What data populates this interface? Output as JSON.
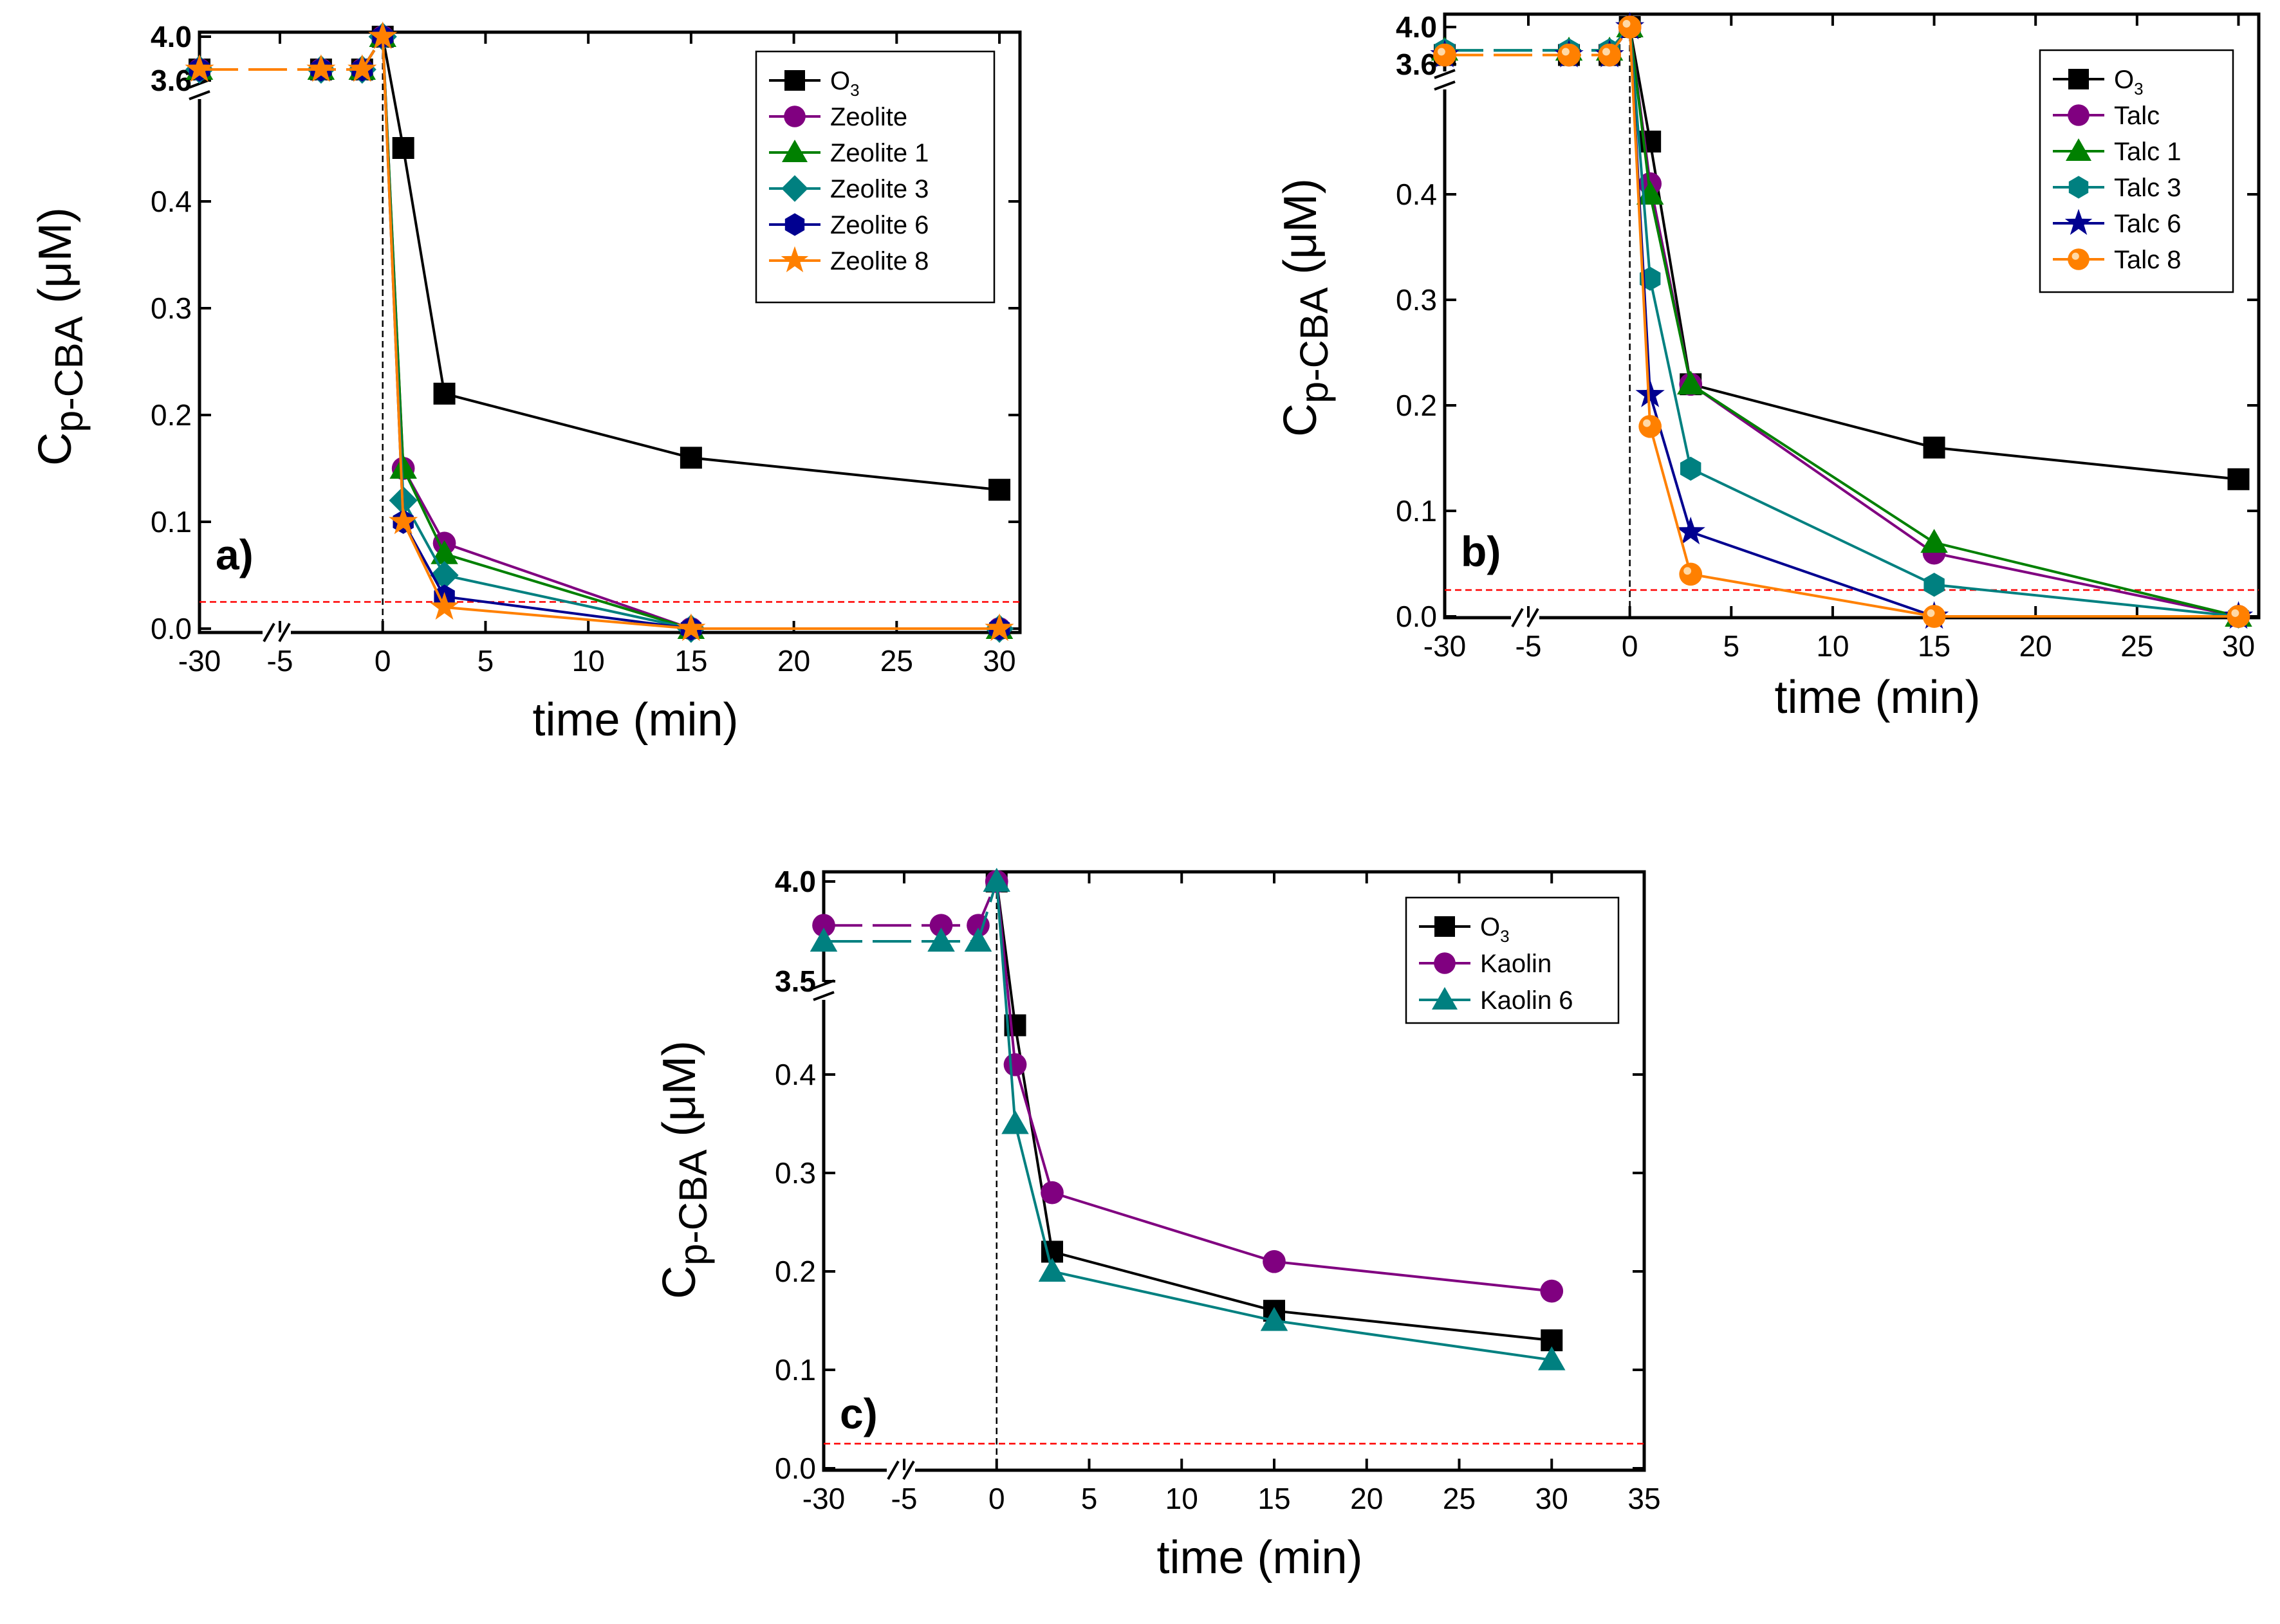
{
  "chart_data": [
    {
      "type": "line",
      "panel_label": "a)",
      "title": "",
      "xlabel": "time (min)",
      "ylabel_main": "C",
      "ylabel_sub": "p-CBA",
      "ylabel_unit": " (μM)",
      "x_broken": [
        -30,
        -5
      ],
      "x_ticks": [
        -30,
        -5,
        0,
        5,
        10,
        15,
        20,
        25,
        30
      ],
      "x_tick_labels": [
        "-30",
        "-5",
        "0",
        "5",
        "10",
        "15",
        "20",
        "25",
        "30"
      ],
      "xlim": [
        -5,
        31
      ],
      "ylim_lower": [
        0,
        0.45
      ],
      "y_ticks_lower": [
        0.0,
        0.1,
        0.2,
        0.3,
        0.4
      ],
      "y_tick_labels_lower": [
        "0.0",
        "0.1",
        "0.2",
        "0.3",
        "0.4"
      ],
      "ylim_upper": [
        3.6,
        4.0
      ],
      "y_ticks_upper": [
        3.6,
        4.0
      ],
      "y_tick_labels_upper": [
        "3.6",
        "4.0"
      ],
      "reference_line": 0.025,
      "legend_position": "top-right",
      "series": [
        {
          "name": "O",
          "name_sub": "3",
          "color": "#000000",
          "marker": "square",
          "x": [
            -30,
            -3,
            -1,
            0,
            1,
            3,
            15,
            30
          ],
          "y": [
            3.7,
            3.7,
            3.7,
            4.0,
            0.45,
            0.22,
            0.16,
            0.13
          ]
        },
        {
          "name": "Zeolite",
          "name_sub": "",
          "color": "#800080",
          "marker": "circle",
          "x": [
            -30,
            -3,
            -1,
            0,
            1,
            3,
            15,
            30
          ],
          "y": [
            3.7,
            3.7,
            3.7,
            4.0,
            0.15,
            0.08,
            0.0,
            0.0
          ]
        },
        {
          "name": "Zeolite 1",
          "name_sub": "",
          "color": "#008000",
          "marker": "triangle",
          "x": [
            -30,
            -3,
            -1,
            0,
            1,
            3,
            15,
            30
          ],
          "y": [
            3.7,
            3.7,
            3.7,
            4.0,
            0.15,
            0.07,
            0.0,
            0.0
          ]
        },
        {
          "name": "Zeolite 3",
          "name_sub": "",
          "color": "#008080",
          "marker": "diamond",
          "x": [
            -30,
            -3,
            -1,
            0,
            1,
            3,
            15,
            30
          ],
          "y": [
            3.7,
            3.7,
            3.7,
            4.0,
            0.12,
            0.05,
            0.0,
            0.0
          ]
        },
        {
          "name": "Zeolite 6",
          "name_sub": "",
          "color": "#000090",
          "marker": "hexagon",
          "x": [
            -30,
            -3,
            -1,
            0,
            1,
            3,
            15,
            30
          ],
          "y": [
            3.7,
            3.7,
            3.7,
            4.0,
            0.1,
            0.03,
            0.0,
            0.0
          ]
        },
        {
          "name": "Zeolite 8",
          "name_sub": "",
          "color": "#FF8000",
          "marker": "star",
          "x": [
            -30,
            -3,
            -1,
            0,
            1,
            3,
            15,
            30
          ],
          "y": [
            3.7,
            3.7,
            3.7,
            4.0,
            0.1,
            0.02,
            0.0,
            0.0
          ]
        }
      ]
    },
    {
      "type": "line",
      "panel_label": "b)",
      "title": "",
      "xlabel": "time (min)",
      "ylabel_main": "C",
      "ylabel_sub": "p-CBA",
      "ylabel_unit": " (μM)",
      "x_broken": [
        -30,
        -5
      ],
      "x_ticks": [
        -30,
        -5,
        0,
        5,
        10,
        15,
        20,
        25,
        30
      ],
      "x_tick_labels": [
        "-30",
        "-5",
        "0",
        "5",
        "10",
        "15",
        "20",
        "25",
        "30"
      ],
      "xlim": [
        -5,
        31
      ],
      "ylim_lower": [
        0,
        0.45
      ],
      "y_ticks_lower": [
        0.0,
        0.1,
        0.2,
        0.3,
        0.4
      ],
      "y_tick_labels_lower": [
        "0.0",
        "0.1",
        "0.2",
        "0.3",
        "0.4"
      ],
      "ylim_upper": [
        3.6,
        4.0
      ],
      "y_ticks_upper": [
        3.6,
        4.0
      ],
      "y_tick_labels_upper": [
        "3.6",
        "4.0"
      ],
      "reference_line": 0.025,
      "legend_position": "top-right",
      "series": [
        {
          "name": "O",
          "name_sub": "3",
          "color": "#000000",
          "marker": "square",
          "x": [
            -30,
            -3,
            -1,
            0,
            1,
            3,
            15,
            30
          ],
          "y": [
            3.7,
            3.7,
            3.7,
            4.0,
            0.45,
            0.22,
            0.16,
            0.13
          ]
        },
        {
          "name": "Talc",
          "name_sub": "",
          "color": "#800080",
          "marker": "circle",
          "x": [
            -30,
            -3,
            -1,
            0,
            1,
            3,
            15,
            30
          ],
          "y": [
            3.7,
            3.7,
            3.7,
            4.0,
            0.41,
            0.22,
            0.06,
            0.0
          ]
        },
        {
          "name": "Talc 1",
          "name_sub": "",
          "color": "#008000",
          "marker": "triangle",
          "x": [
            -30,
            -3,
            -1,
            0,
            1,
            3,
            15,
            30
          ],
          "y": [
            3.75,
            3.75,
            3.75,
            4.0,
            0.4,
            0.22,
            0.07,
            0.0
          ]
        },
        {
          "name": "Talc 3",
          "name_sub": "",
          "color": "#008080",
          "marker": "hexagon",
          "x": [
            -30,
            -3,
            -1,
            0,
            1,
            3,
            15,
            30
          ],
          "y": [
            3.75,
            3.75,
            3.75,
            4.0,
            0.32,
            0.14,
            0.03,
            0.0
          ]
        },
        {
          "name": "Talc 6",
          "name_sub": "",
          "color": "#000090",
          "marker": "star",
          "x": [
            -30,
            -3,
            -1,
            0,
            1,
            3,
            15,
            30
          ],
          "y": [
            3.7,
            3.7,
            3.7,
            4.0,
            0.21,
            0.08,
            0.0,
            0.0
          ]
        },
        {
          "name": "Talc 8",
          "name_sub": "",
          "color": "#FF8000",
          "marker": "ball",
          "x": [
            -30,
            -3,
            -1,
            0,
            1,
            3,
            15,
            30
          ],
          "y": [
            3.7,
            3.7,
            3.7,
            4.0,
            0.18,
            0.04,
            0.0,
            0.0
          ]
        }
      ]
    },
    {
      "type": "line",
      "panel_label": "c)",
      "title": "",
      "xlabel": "time (min)",
      "ylabel_main": "C",
      "ylabel_sub": "p-CBA",
      "ylabel_unit": " (μM)",
      "x_broken": [
        -30,
        -5
      ],
      "x_ticks": [
        -30,
        -5,
        0,
        5,
        10,
        15,
        20,
        25,
        30,
        35
      ],
      "x_tick_labels": [
        "-30",
        "-5",
        "0",
        "5",
        "10",
        "15",
        "20",
        "25",
        "30",
        "35"
      ],
      "xlim": [
        -5,
        35
      ],
      "ylim_lower": [
        0,
        0.45
      ],
      "y_ticks_lower": [
        0.0,
        0.1,
        0.2,
        0.3,
        0.4
      ],
      "y_tick_labels_lower": [
        "0.0",
        "0.1",
        "0.2",
        "0.3",
        "0.4"
      ],
      "ylim_upper": [
        3.5,
        4.0
      ],
      "y_ticks_upper": [
        3.5,
        4.0
      ],
      "y_tick_labels_upper": [
        "3.5",
        "4.0"
      ],
      "reference_line": 0.025,
      "legend_position": "top-right",
      "series": [
        {
          "name": "O",
          "name_sub": "3",
          "color": "#000000",
          "marker": "square",
          "x": [
            0,
            1,
            3,
            15,
            30
          ],
          "y": [
            4.0,
            0.45,
            0.22,
            0.16,
            0.13
          ]
        },
        {
          "name": "Kaolin",
          "name_sub": "",
          "color": "#800080",
          "marker": "circle",
          "x": [
            -30,
            -3,
            -1,
            0,
            1,
            3,
            15,
            30
          ],
          "y": [
            3.78,
            3.78,
            3.78,
            4.0,
            0.41,
            0.28,
            0.21,
            0.18
          ]
        },
        {
          "name": "Kaolin 6",
          "name_sub": "",
          "color": "#008080",
          "marker": "triangle",
          "x": [
            -30,
            -3,
            -1,
            0,
            1,
            3,
            15,
            30
          ],
          "y": [
            3.7,
            3.7,
            3.7,
            4.0,
            0.35,
            0.2,
            0.15,
            0.11
          ]
        }
      ]
    }
  ]
}
